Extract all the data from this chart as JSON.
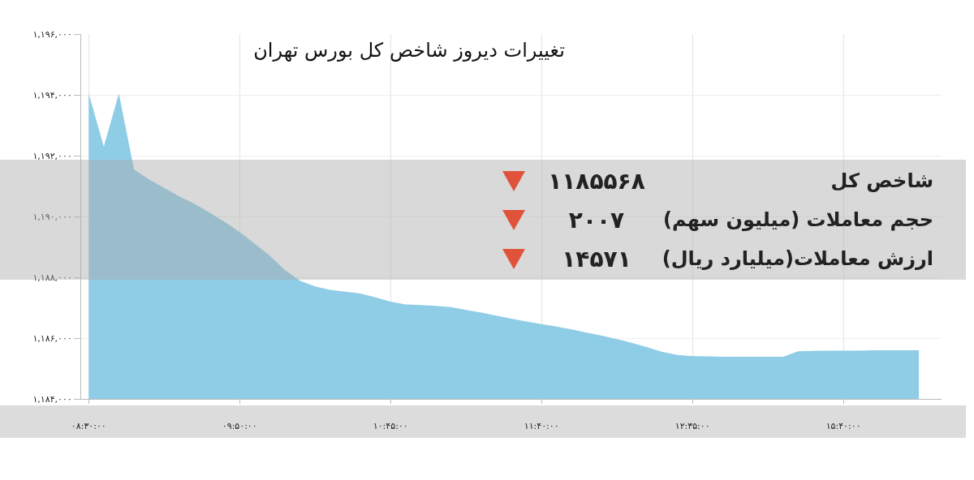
{
  "chart_data": {
    "type": "area",
    "title": "تغییرات دیروز شاخص کل بورس تهران",
    "categories": [
      "۰۸:۳۰:۰۰",
      null,
      null,
      null,
      null,
      null,
      null,
      null,
      null,
      null,
      "۰۹:۵۰:۰۰",
      null,
      null,
      null,
      null,
      null,
      null,
      null,
      null,
      null,
      "۱۰:۴۵:۰۰",
      null,
      null,
      null,
      null,
      null,
      null,
      null,
      null,
      null,
      "۱۱:۴۰:۰۰",
      null,
      null,
      null,
      null,
      null,
      null,
      null,
      null,
      null,
      "۱۲:۳۵:۰۰",
      null,
      null,
      null,
      null,
      null,
      null,
      null,
      null,
      null,
      "۱۵:۴۰:۰۰",
      null,
      null,
      null,
      null,
      null
    ],
    "series": [
      {
        "color": "#8fcde6",
        "values": [
          1194050,
          1192300,
          1194050,
          1191550,
          1191220,
          1190940,
          1190660,
          1190420,
          1190130,
          1189830,
          1189490,
          1189110,
          1188710,
          1188240,
          1187890,
          1187700,
          1187590,
          1187530,
          1187470,
          1187340,
          1187200,
          1187110,
          1187090,
          1187060,
          1187020,
          1186930,
          1186840,
          1186740,
          1186640,
          1186550,
          1186460,
          1186380,
          1186290,
          1186180,
          1186080,
          1185970,
          1185840,
          1185700,
          1185550,
          1185450,
          1185410,
          1185400,
          1185390,
          1185390,
          1185390,
          1185390,
          1185390,
          1185570,
          1185580,
          1185590,
          1185590,
          1185590,
          1185600,
          1185600,
          1185600,
          1185600
        ]
      }
    ],
    "ylim": [
      1184000,
      1196000
    ],
    "yticks": [
      {
        "value": 1184000,
        "label": "۱,۱۸۴,۰۰۰"
      },
      {
        "value": 1186000,
        "label": "۱,۱۸۶,۰۰۰"
      },
      {
        "value": 1188000,
        "label": "۱,۱۸۸,۰۰۰"
      },
      {
        "value": 1190000,
        "label": "۱,۱۹۰,۰۰۰"
      },
      {
        "value": 1192000,
        "label": "۱,۱۹۲,۰۰۰"
      },
      {
        "value": 1194000,
        "label": "۱,۱۹۴,۰۰۰"
      },
      {
        "value": 1196000,
        "label": "۱,۱۹۶,۰۰۰"
      }
    ],
    "grid": true,
    "annotations": [
      "شاخص کل",
      "۱۱۸۵۵۶۸",
      "حجم معاملات (میلیون سهم)",
      "۲۰۰۷",
      "ارزش معاملات(میلیارد ریال)",
      "۱۴۵۷۱"
    ]
  }
}
